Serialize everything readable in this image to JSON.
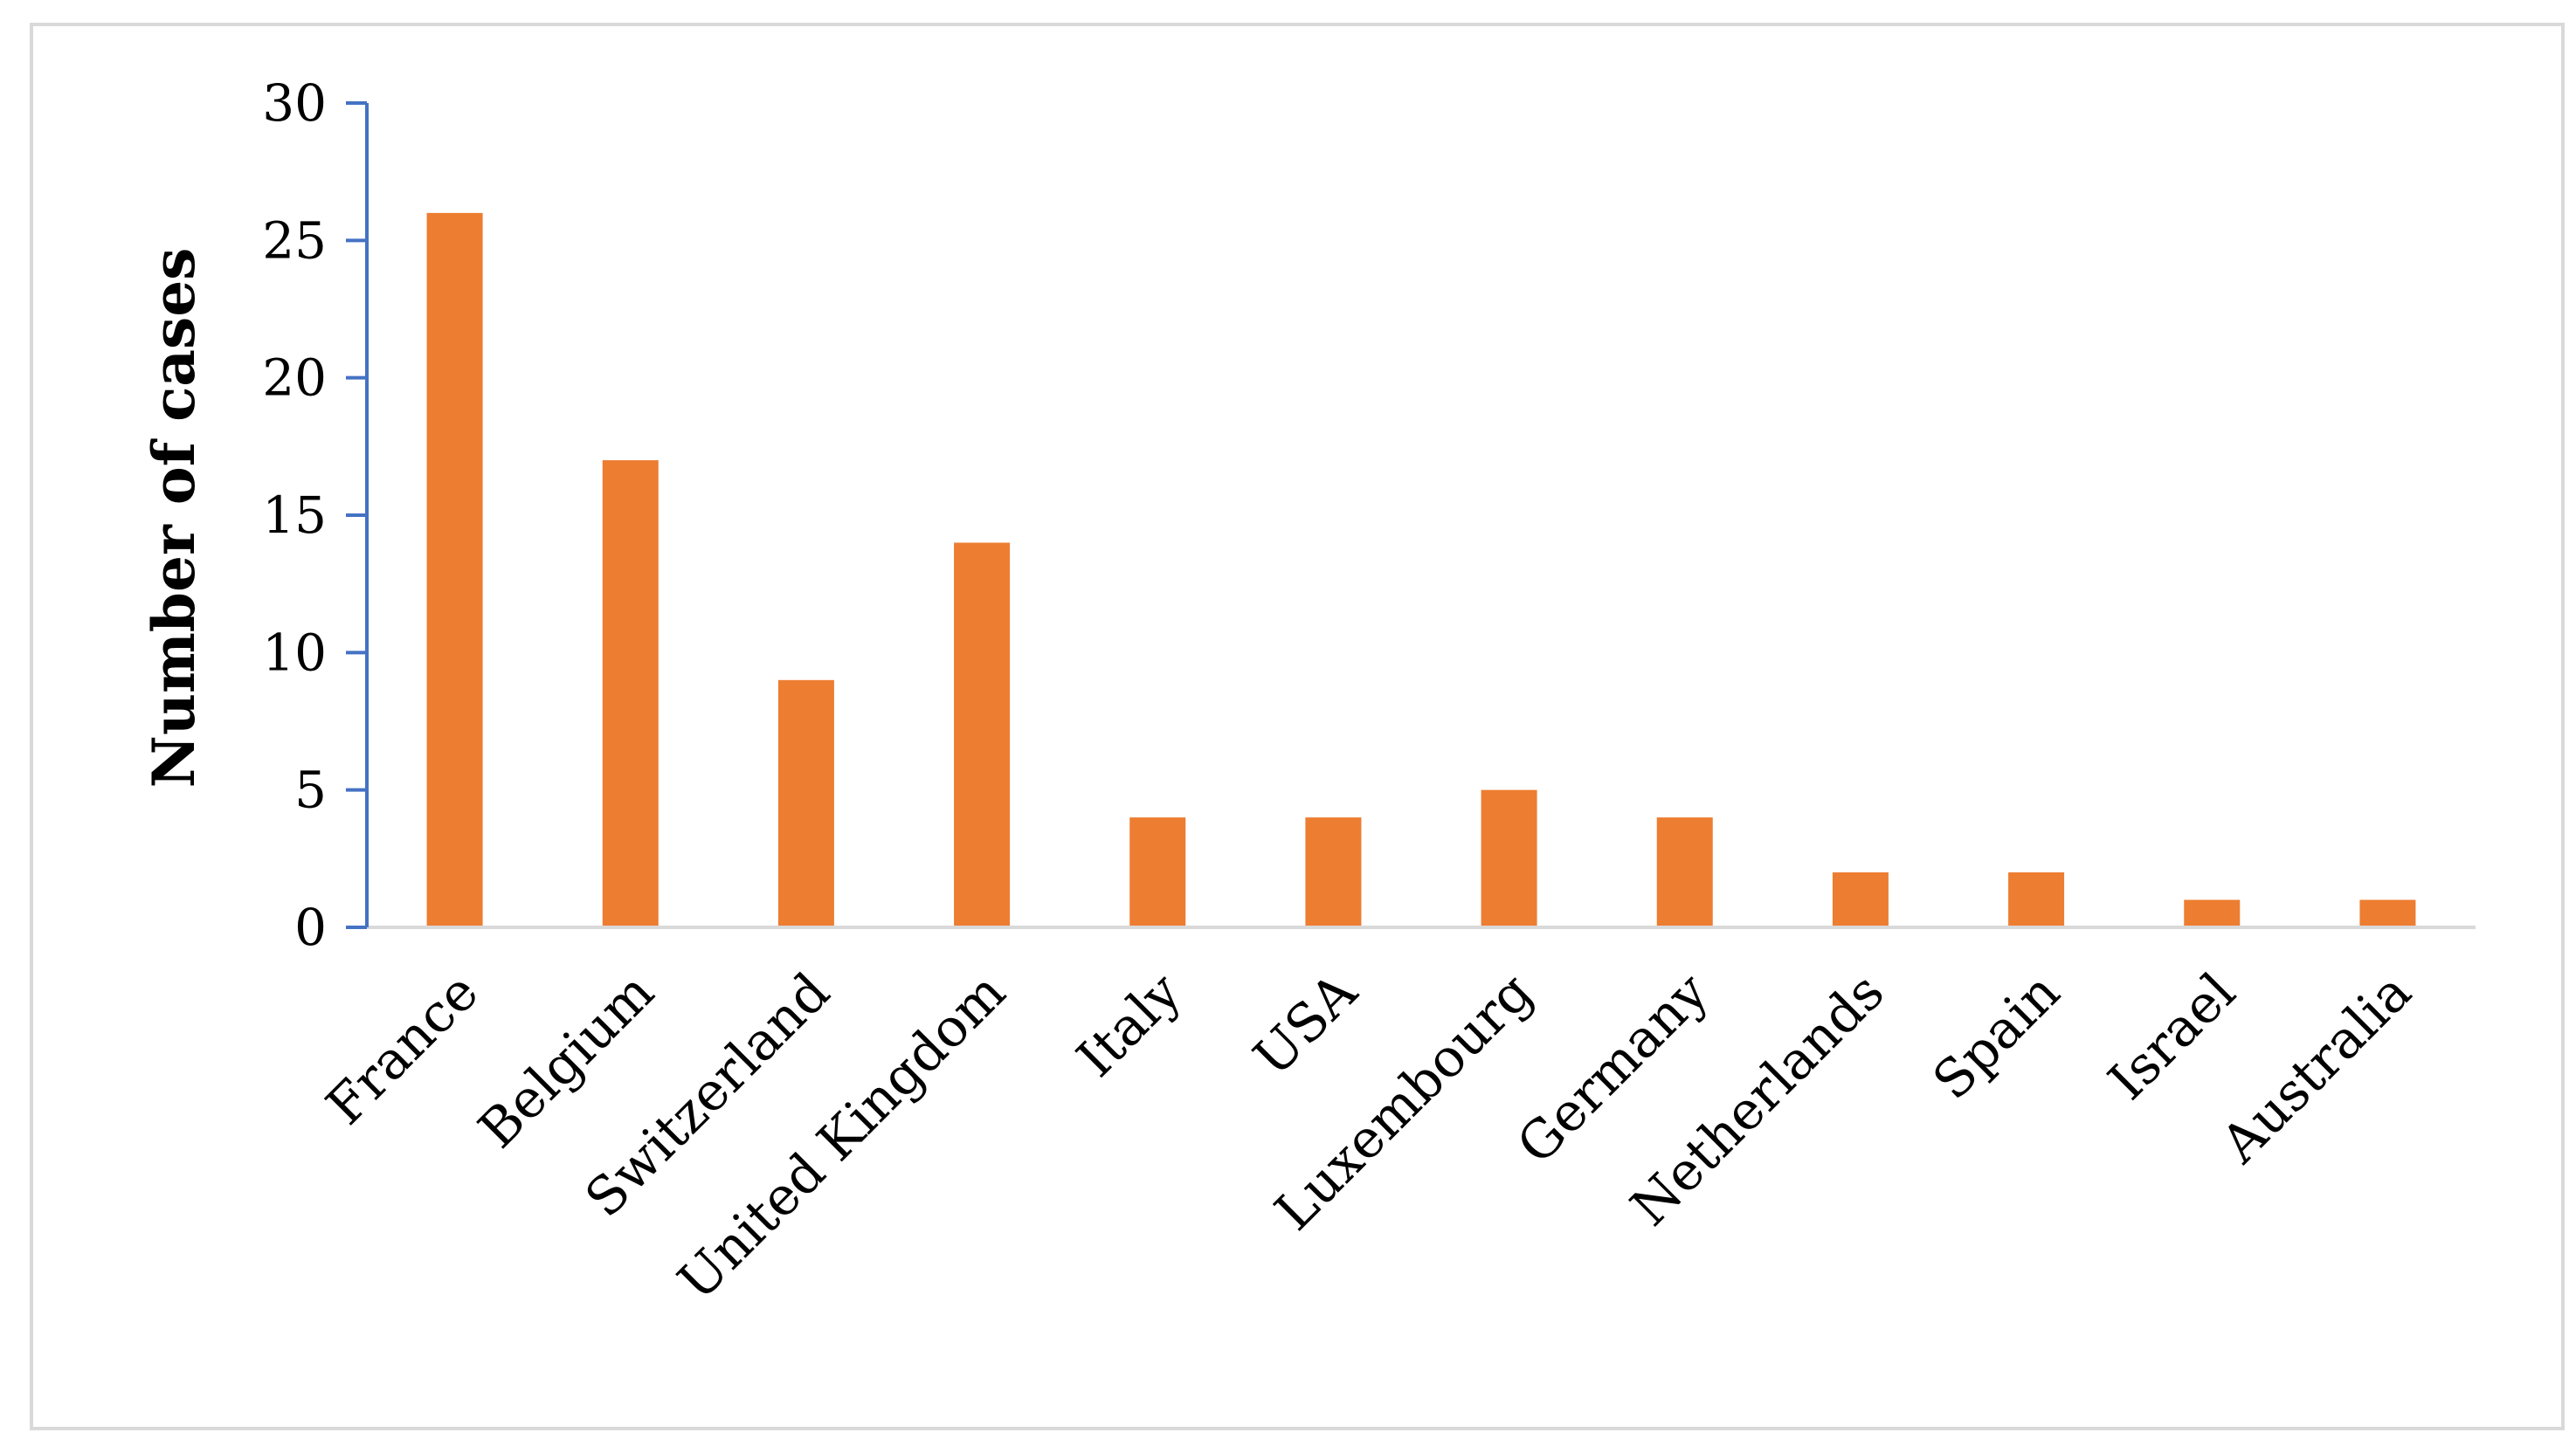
{
  "chart_data": {
    "type": "bar",
    "title": "",
    "xlabel": "",
    "ylabel": "Number of cases",
    "ylim": [
      0,
      30
    ],
    "yticks": [
      "0",
      "5",
      "10",
      "15",
      "20",
      "25",
      "30"
    ],
    "grid": false,
    "legend": "none",
    "categories": [
      "France",
      "Belgium",
      "Switzerland",
      "United Kingdom",
      "Italy",
      "USA",
      "Luxembourg",
      "Germany",
      "Netherlands",
      "Spain",
      "Israel",
      "Australia"
    ],
    "values": [
      26,
      17,
      9,
      14,
      4,
      4,
      5,
      4,
      2,
      2,
      1,
      1
    ],
    "colors": {
      "bar": "#ED7D31",
      "y_axis": "#4472C4",
      "x_axis": "#d9d9d9",
      "frame": "#d9d9d9"
    }
  }
}
